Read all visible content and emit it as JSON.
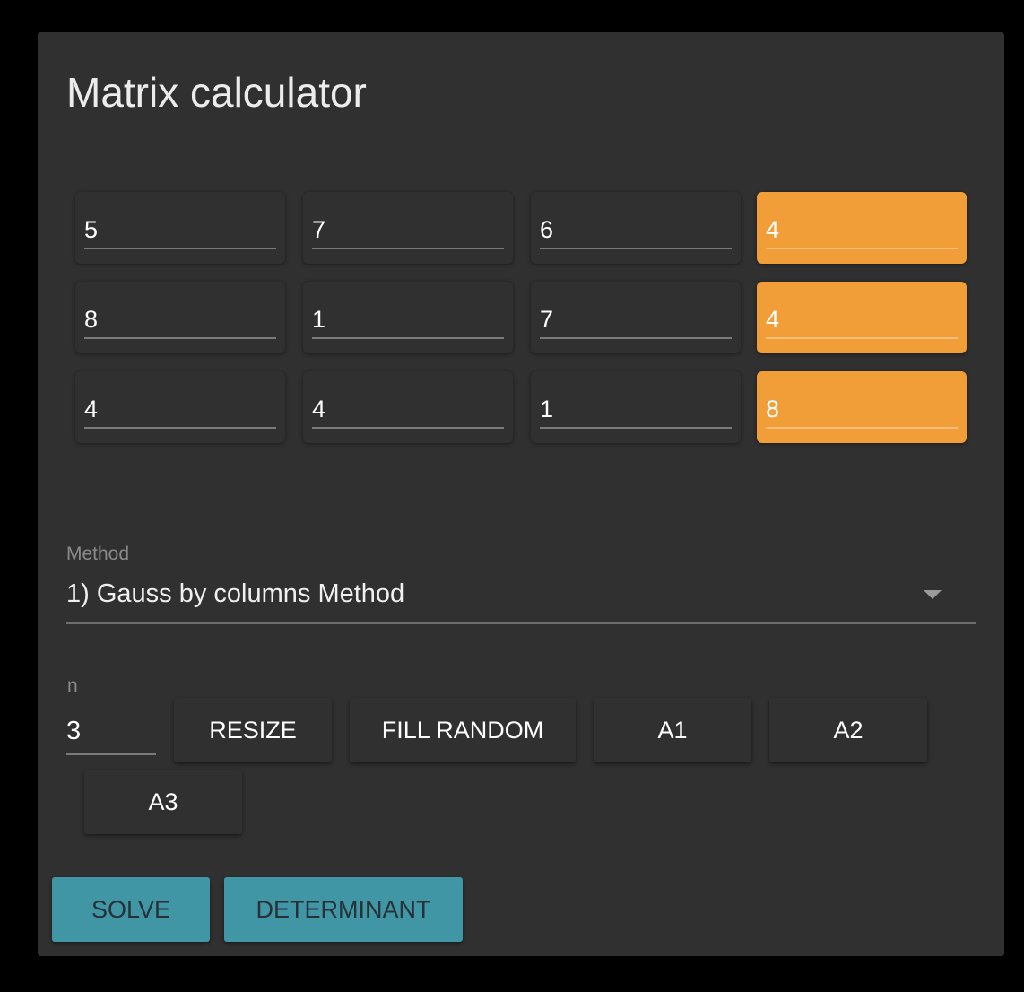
{
  "title": "Matrix calculator",
  "matrix": [
    [
      "5",
      "7",
      "6",
      "4"
    ],
    [
      "8",
      "1",
      "7",
      "4"
    ],
    [
      "4",
      "4",
      "1",
      "8"
    ]
  ],
  "method": {
    "label": "Method",
    "value": "1) Gauss by columns Method"
  },
  "size": {
    "label": "n",
    "value": "3"
  },
  "buttons": {
    "resize": "RESIZE",
    "fill_random": "FILL RANDOM",
    "a1": "A1",
    "a2": "A2",
    "a3": "A3",
    "solve": "SOLVE",
    "determinant": "DETERMINANT"
  },
  "colors": {
    "accent_orange": "#f29e38",
    "accent_teal": "#4196a6",
    "card": "#303030"
  }
}
